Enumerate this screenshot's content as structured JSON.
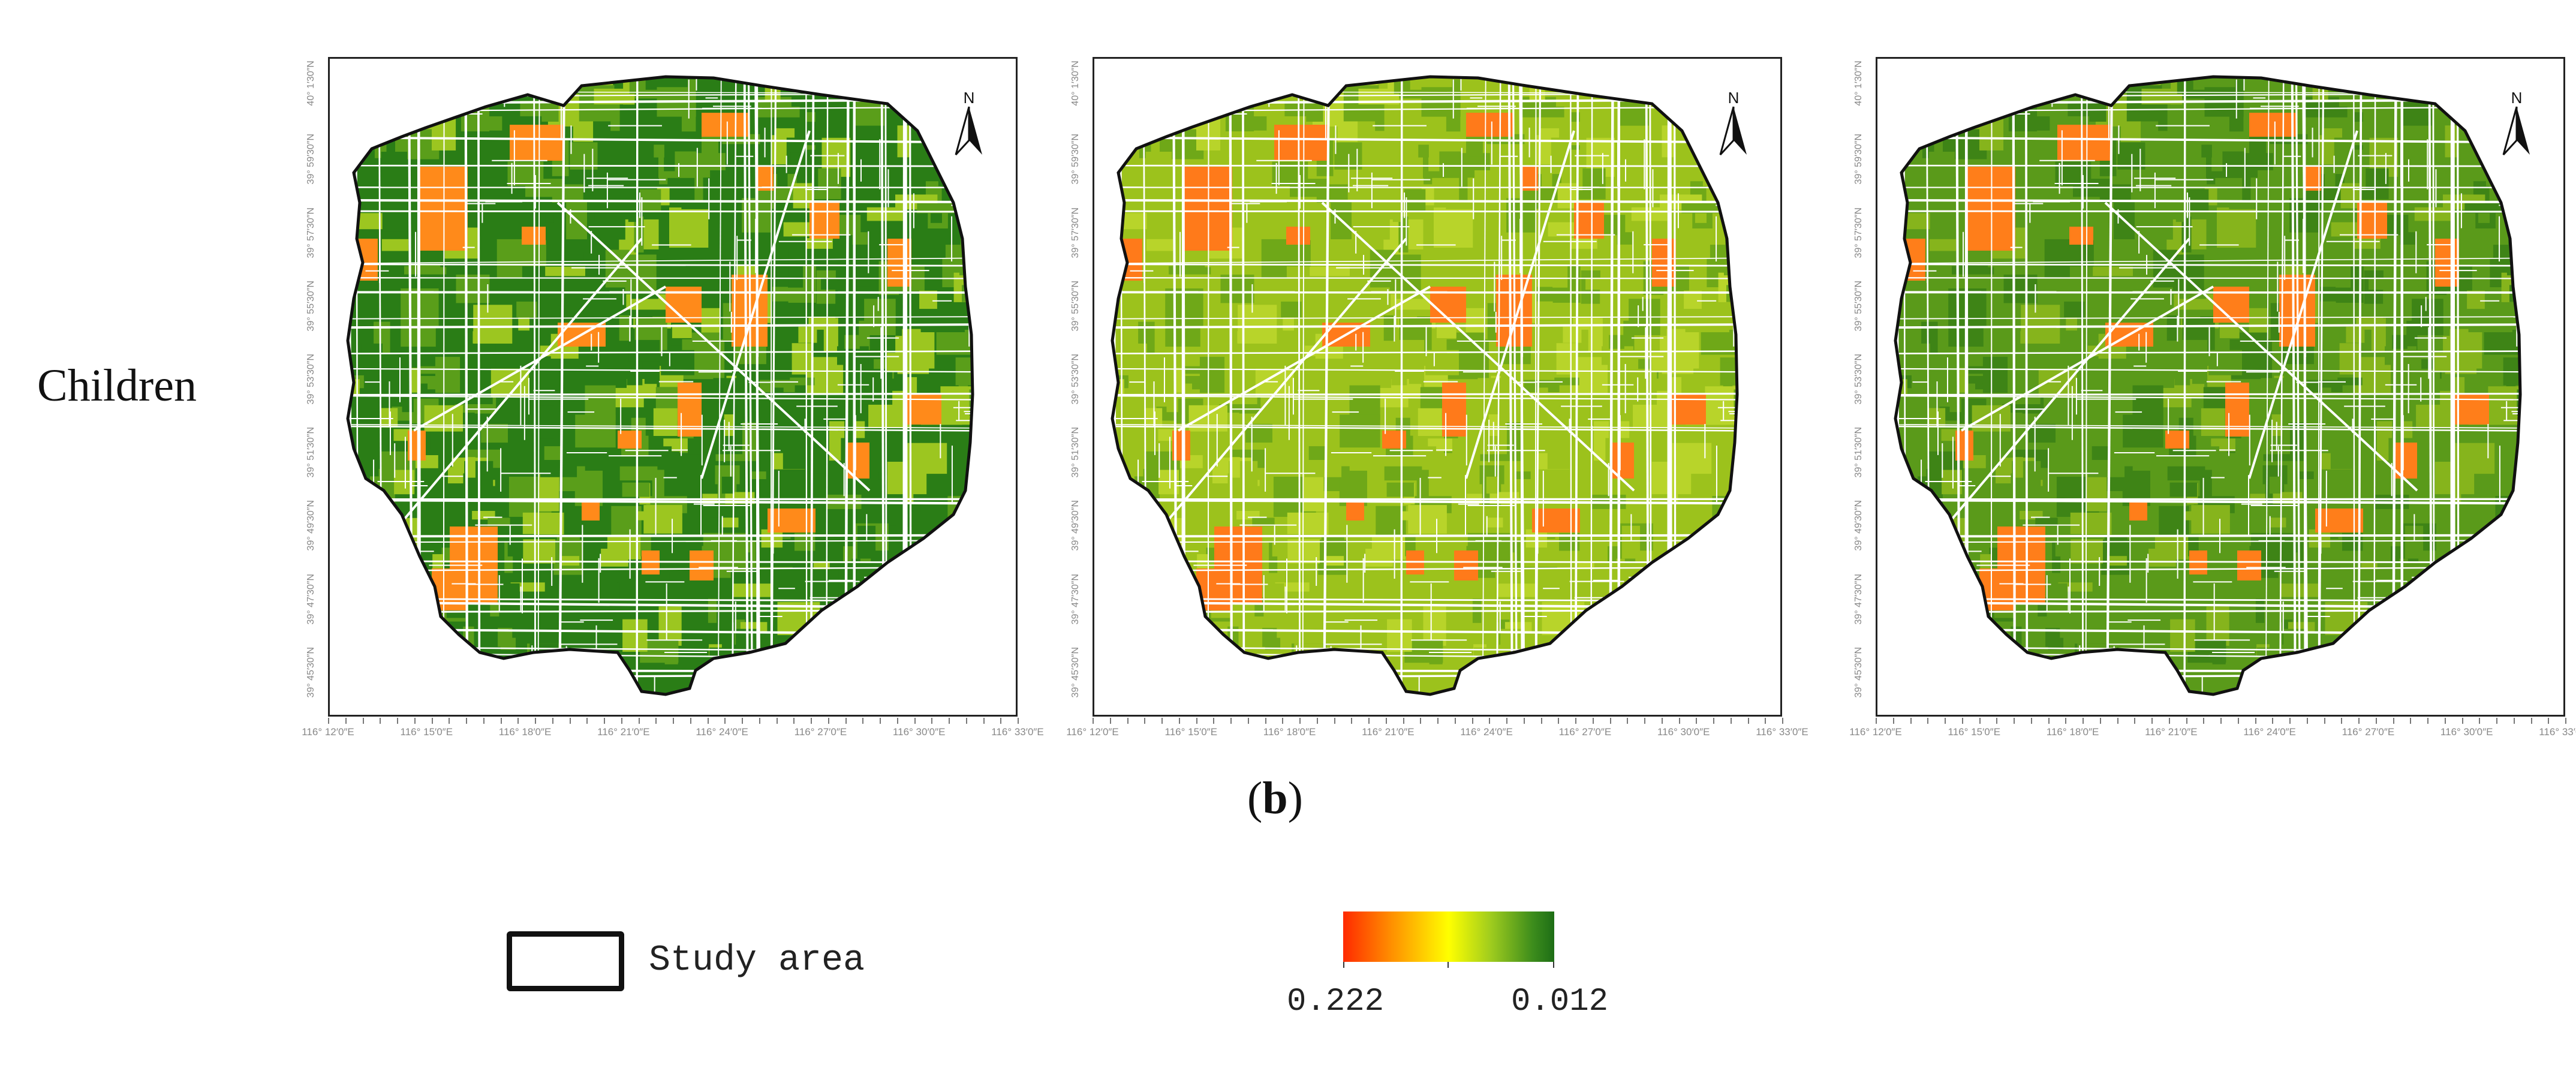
{
  "row_label": "Children",
  "caption": {
    "open": "(",
    "letter": "b",
    "close": ")"
  },
  "north_label": "N",
  "x_axis_ticks": [
    "116° 12′0″E",
    "116° 15′0″E",
    "116° 18′0″E",
    "116° 21′0″E",
    "116° 24′0″E",
    "116° 27′0″E",
    "116° 30′0″E",
    "116° 33′0″E"
  ],
  "y_axis_ticks": [
    "39° 45′30″N",
    "39° 47′30″N",
    "39° 49′30″N",
    "39° 51′30″N",
    "39° 53′30″N",
    "39° 55′30″N",
    "39° 57′30″N",
    "39° 59′30″N",
    "40° 1′30″N"
  ],
  "panels": [
    {
      "name": "panel-1",
      "dominant": "#2a7d16",
      "secondary": "#5a9e1a",
      "tertiary": "#9cc620",
      "hot": "#ff8a1a"
    },
    {
      "name": "panel-2",
      "dominant": "#9cc21c",
      "secondary": "#6fa818",
      "tertiary": "#b8d42a",
      "hot": "#ff7a1a"
    },
    {
      "name": "panel-3",
      "dominant": "#5a9a1a",
      "secondary": "#3e8416",
      "tertiary": "#86b41c",
      "hot": "#ff7e1a"
    }
  ],
  "legend": {
    "study_area_label": "Study area",
    "colorbar_min_label": "0.222",
    "colorbar_max_label": "0.012"
  },
  "colors": {
    "high": "#ff2a00",
    "mid": "#ffff00",
    "low": "#1e6e16",
    "boundary": "#111111",
    "roads": "#ffffff"
  }
}
